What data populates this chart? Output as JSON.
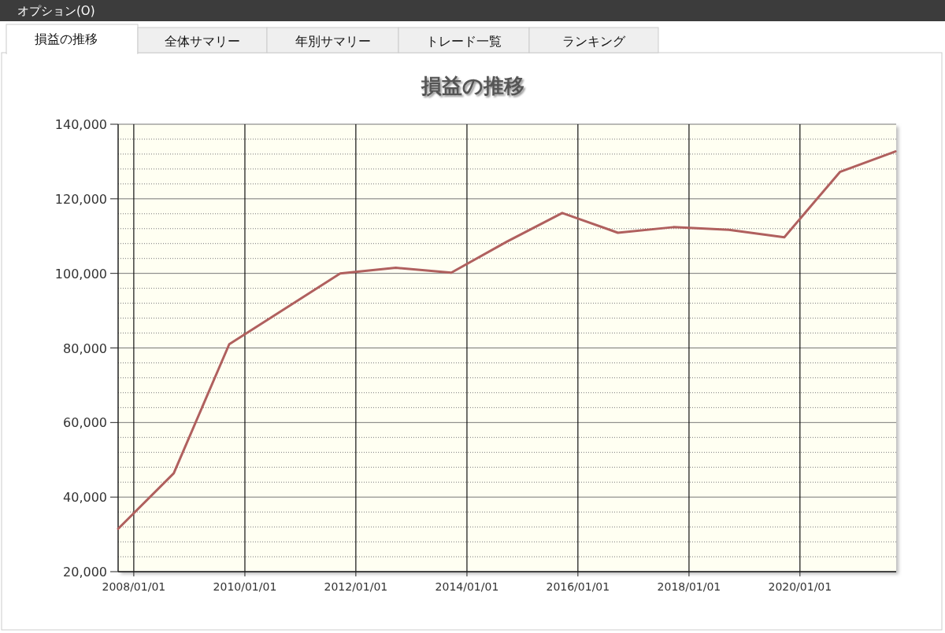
{
  "chart_data": {
    "type": "line",
    "title": "損益の推移",
    "annotations": [
      "オプション(O)",
      "損益の推移",
      "全体サマリー",
      "年別サマリー",
      "トレード一覧",
      "ランキング"
    ],
    "x": [
      "2007-09-20",
      "2008-09-20",
      "2009-09-20",
      "2010-09-20",
      "2011-09-20",
      "2012-09-20",
      "2013-09-20",
      "2014-09-20",
      "2015-09-20",
      "2016-09-20",
      "2017-09-20",
      "2018-09-20",
      "2019-09-20",
      "2020-09-20",
      "2021-09-20"
    ],
    "series": [
      {
        "color": "#b0605e",
        "values": [
          31500,
          46400,
          81000,
          90500,
          100000,
          101500,
          100200,
          108500,
          116200,
          110900,
          112400,
          111700,
          109700,
          127200,
          132700
        ]
      }
    ],
    "xlim": [
      "2007-09-20",
      "2021-09-25"
    ],
    "xticks": [
      {
        "value": "2008-01-01",
        "label": "2008/01/01"
      },
      {
        "value": "2010-01-01",
        "label": "2010/01/01"
      },
      {
        "value": "2012-01-01",
        "label": "2012/01/01"
      },
      {
        "value": "2014-01-01",
        "label": "2014/01/01"
      },
      {
        "value": "2016-01-01",
        "label": "2016/01/01"
      },
      {
        "value": "2018-01-01",
        "label": "2018/01/01"
      },
      {
        "value": "2020-01-01",
        "label": "2020/01/01"
      }
    ],
    "ylim": [
      20000,
      140000
    ],
    "yticks": [
      {
        "value": 20000,
        "label": "20,000"
      },
      {
        "value": 40000,
        "label": "40,000"
      },
      {
        "value": 60000,
        "label": "60,000"
      },
      {
        "value": 80000,
        "label": "80,000"
      },
      {
        "value": 100000,
        "label": "100,000"
      },
      {
        "value": 120000,
        "label": "120,000"
      },
      {
        "value": 140000,
        "label": "140,000"
      }
    ],
    "grid": true
  }
}
